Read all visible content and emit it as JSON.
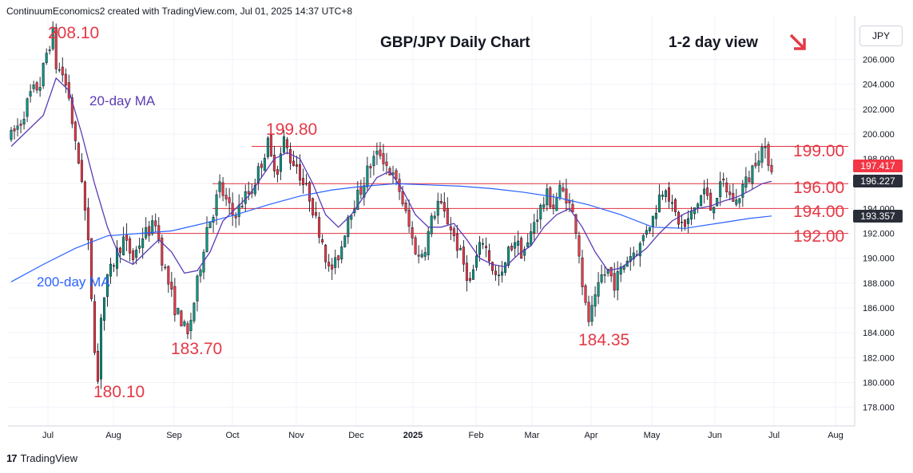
{
  "header": {
    "text": "ContinuumEconomics2 created with TradingView.com, Jul 01, 2025 14:37 UTC+8"
  },
  "branding": {
    "logo": "17",
    "name": "TradingView"
  },
  "currency": "JPY",
  "chart_data": {
    "type": "candlestick",
    "title": "GBP/JPY Daily Chart",
    "subtitle": "1-2 day view",
    "ylim": [
      176.5,
      209.5
    ],
    "y_ticks": [
      "178.000",
      "180.000",
      "182.000",
      "184.000",
      "186.000",
      "188.000",
      "190.000",
      "192.000",
      "194.000",
      "196.000",
      "198.000",
      "200.000",
      "202.000",
      "204.000",
      "206.000"
    ],
    "x_ticks": [
      "Jul",
      "Aug",
      "Sep",
      "Oct",
      "Nov",
      "Dec",
      "2025",
      "Feb",
      "Mar",
      "Apr",
      "May",
      "Jun",
      "Jul",
      "Aug"
    ],
    "horizontal_levels": [
      {
        "value": 199.0,
        "label": "199.00"
      },
      {
        "value": 196.0,
        "label": "196.00"
      },
      {
        "value": 194.0,
        "label": "194.00"
      },
      {
        "value": 192.0,
        "label": "192.00"
      }
    ],
    "annotations": [
      {
        "label": "208.10",
        "date": "2024-07-11",
        "value": 208.1
      },
      {
        "label": "199.80",
        "date": "2024-10-31",
        "value": 199.8
      },
      {
        "label": "183.70",
        "date": "2024-09-16",
        "value": 183.7
      },
      {
        "label": "180.10",
        "date": "2024-08-05",
        "value": 180.1
      },
      {
        "label": "184.35",
        "date": "2025-04-07",
        "value": 184.35
      }
    ],
    "ma_labels": {
      "ma20": "20-day MA",
      "ma200": "200-day MA"
    },
    "price_badges": [
      {
        "value": 197.417,
        "label": "197.417",
        "color": "#f23645"
      },
      {
        "value": 196.227,
        "label": "196.227",
        "color": "#2a2e39"
      },
      {
        "value": 193.357,
        "label": "193.357",
        "color": "#2a2e39"
      }
    ],
    "ohlc_path": [
      [
        0,
        199.8
      ],
      [
        3,
        201.0
      ],
      [
        6,
        203.2
      ],
      [
        9,
        204.0
      ],
      [
        11,
        206.5
      ],
      [
        13,
        208.1
      ],
      [
        14,
        205.5
      ],
      [
        16,
        204.8
      ],
      [
        18,
        203.0
      ],
      [
        20,
        199.0
      ],
      [
        22,
        196.5
      ],
      [
        24,
        191.0
      ],
      [
        25,
        187.0
      ],
      [
        26,
        183.0
      ],
      [
        27,
        180.1
      ],
      [
        28,
        185.5
      ],
      [
        30,
        188.2
      ],
      [
        33,
        190.5
      ],
      [
        35,
        191.5
      ],
      [
        38,
        190.0
      ],
      [
        41,
        191.8
      ],
      [
        44,
        192.5
      ],
      [
        45,
        193.0
      ],
      [
        47,
        190.0
      ],
      [
        49,
        188.0
      ],
      [
        51,
        186.0
      ],
      [
        53,
        185.0
      ],
      [
        55,
        183.7
      ],
      [
        57,
        186.5
      ],
      [
        59,
        189.5
      ],
      [
        61,
        192.5
      ],
      [
        63,
        193.8
      ],
      [
        65,
        195.8
      ],
      [
        67,
        194.5
      ],
      [
        69,
        193.5
      ],
      [
        71,
        194.0
      ],
      [
        73,
        195.0
      ],
      [
        75,
        195.5
      ],
      [
        77,
        197.0
      ],
      [
        79,
        198.5
      ],
      [
        80,
        199.2
      ],
      [
        81,
        198.0
      ],
      [
        83,
        197.2
      ],
      [
        85,
        199.5
      ],
      [
        87,
        198.0
      ],
      [
        89,
        197.5
      ],
      [
        91,
        196.0
      ],
      [
        93,
        195.0
      ],
      [
        95,
        193.0
      ],
      [
        97,
        191.5
      ],
      [
        99,
        189.0
      ],
      [
        101,
        189.5
      ],
      [
        103,
        191.0
      ],
      [
        105,
        193.5
      ],
      [
        107,
        194.5
      ],
      [
        109,
        195.5
      ],
      [
        111,
        197.0
      ],
      [
        113,
        198.0
      ],
      [
        115,
        198.5
      ],
      [
        117,
        197.5
      ],
      [
        119,
        196.5
      ],
      [
        121,
        195.5
      ],
      [
        123,
        193.5
      ],
      [
        125,
        191.5
      ],
      [
        127,
        190.0
      ],
      [
        129,
        191.0
      ],
      [
        131,
        193.0
      ],
      [
        133,
        194.5
      ],
      [
        135,
        193.5
      ],
      [
        137,
        192.5
      ],
      [
        139,
        191.0
      ],
      [
        141,
        189.5
      ],
      [
        143,
        188.0
      ],
      [
        145,
        190.0
      ],
      [
        147,
        191.5
      ],
      [
        149,
        190.0
      ],
      [
        151,
        188.5
      ],
      [
        153,
        188.5
      ],
      [
        155,
        190.5
      ],
      [
        157,
        191.5
      ],
      [
        159,
        190.5
      ],
      [
        161,
        191.0
      ],
      [
        163,
        193.0
      ],
      [
        165,
        194.0
      ],
      [
        167,
        195.0
      ],
      [
        169,
        194.2
      ],
      [
        171,
        195.5
      ],
      [
        173,
        195.0
      ],
      [
        175,
        193.5
      ],
      [
        176,
        192.5
      ],
      [
        177,
        190.5
      ],
      [
        178,
        188.0
      ],
      [
        179,
        186.0
      ],
      [
        180,
        185.0
      ],
      [
        182,
        186.5
      ],
      [
        184,
        188.5
      ],
      [
        186,
        189.0
      ],
      [
        188,
        188.0
      ],
      [
        190,
        189.0
      ],
      [
        192,
        190.0
      ],
      [
        194,
        190.5
      ],
      [
        196,
        191.0
      ],
      [
        198,
        192.5
      ],
      [
        200,
        193.2
      ],
      [
        202,
        195.0
      ],
      [
        204,
        196.0
      ],
      [
        206,
        194.0
      ],
      [
        208,
        193.0
      ],
      [
        210,
        192.5
      ],
      [
        212,
        193.5
      ],
      [
        214,
        194.5
      ],
      [
        216,
        195.5
      ],
      [
        218,
        194.0
      ],
      [
        220,
        195.2
      ],
      [
        222,
        196.0
      ],
      [
        224,
        195.0
      ],
      [
        226,
        194.5
      ],
      [
        228,
        195.8
      ],
      [
        230,
        196.5
      ],
      [
        232,
        198.0
      ],
      [
        234,
        198.8
      ],
      [
        236,
        198.0
      ],
      [
        237,
        197.4
      ]
    ],
    "ma20_path": [
      [
        0,
        199.0
      ],
      [
        10,
        201.5
      ],
      [
        14,
        204.5
      ],
      [
        18,
        203.5
      ],
      [
        22,
        200.0
      ],
      [
        26,
        196.0
      ],
      [
        30,
        192.5
      ],
      [
        34,
        190.0
      ],
      [
        38,
        189.5
      ],
      [
        42,
        190.5
      ],
      [
        46,
        191.5
      ],
      [
        50,
        190.5
      ],
      [
        54,
        188.8
      ],
      [
        58,
        189.0
      ],
      [
        62,
        190.5
      ],
      [
        66,
        193.0
      ],
      [
        70,
        194.0
      ],
      [
        74,
        195.0
      ],
      [
        78,
        196.5
      ],
      [
        82,
        198.0
      ],
      [
        86,
        198.5
      ],
      [
        90,
        198.0
      ],
      [
        94,
        196.0
      ],
      [
        98,
        193.5
      ],
      [
        102,
        192.5
      ],
      [
        106,
        193.5
      ],
      [
        110,
        195.0
      ],
      [
        114,
        196.5
      ],
      [
        118,
        197.0
      ],
      [
        122,
        195.5
      ],
      [
        126,
        193.5
      ],
      [
        130,
        192.5
      ],
      [
        134,
        192.5
      ],
      [
        138,
        192.8
      ],
      [
        142,
        191.5
      ],
      [
        146,
        190.0
      ],
      [
        150,
        189.5
      ],
      [
        154,
        189.3
      ],
      [
        158,
        190.3
      ],
      [
        162,
        191.0
      ],
      [
        166,
        192.5
      ],
      [
        170,
        193.5
      ],
      [
        174,
        194.0
      ],
      [
        178,
        192.5
      ],
      [
        182,
        190.5
      ],
      [
        186,
        189.0
      ],
      [
        190,
        189.2
      ],
      [
        194,
        190.0
      ],
      [
        198,
        190.8
      ],
      [
        202,
        192.0
      ],
      [
        206,
        193.0
      ],
      [
        210,
        193.6
      ],
      [
        214,
        194.0
      ],
      [
        218,
        194.2
      ],
      [
        222,
        194.6
      ],
      [
        226,
        194.9
      ],
      [
        230,
        195.4
      ],
      [
        234,
        196.0
      ],
      [
        237,
        196.2
      ]
    ],
    "ma200_path": [
      [
        0,
        188.1
      ],
      [
        10,
        189.5
      ],
      [
        20,
        190.8
      ],
      [
        30,
        191.8
      ],
      [
        40,
        192.0
      ],
      [
        50,
        192.2
      ],
      [
        60,
        192.8
      ],
      [
        70,
        193.5
      ],
      [
        80,
        194.3
      ],
      [
        90,
        195.0
      ],
      [
        100,
        195.5
      ],
      [
        110,
        195.8
      ],
      [
        120,
        196.0
      ],
      [
        130,
        195.9
      ],
      [
        140,
        195.8
      ],
      [
        150,
        195.6
      ],
      [
        160,
        195.3
      ],
      [
        170,
        194.9
      ],
      [
        180,
        194.3
      ],
      [
        190,
        193.5
      ],
      [
        200,
        192.5
      ],
      [
        210,
        192.4
      ],
      [
        220,
        192.8
      ],
      [
        230,
        193.2
      ],
      [
        237,
        193.4
      ]
    ]
  }
}
